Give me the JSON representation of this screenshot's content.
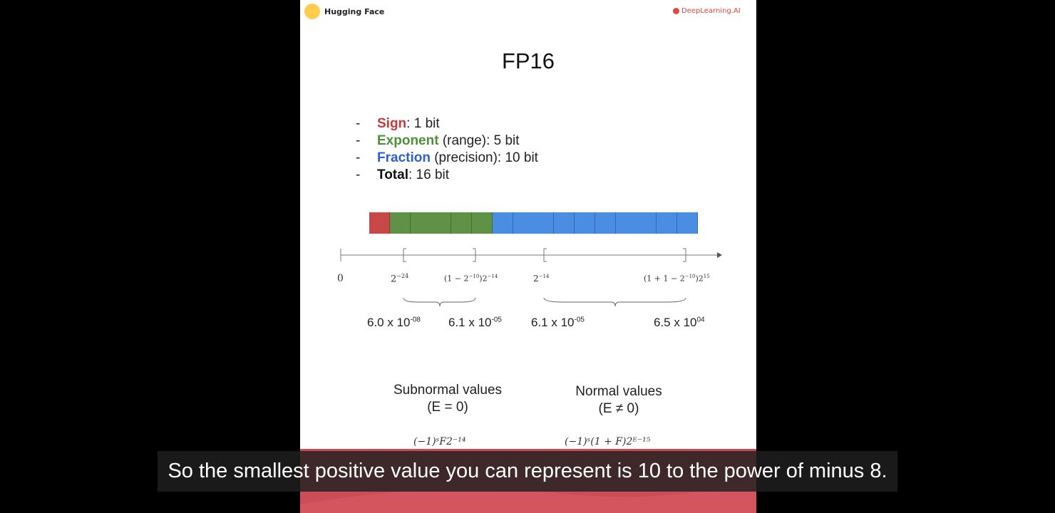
{
  "slide": {
    "hf_label": "Hugging Face",
    "dl_label": "DeepLearning.AI",
    "title": "FP16",
    "bullets": [
      {
        "dash": "-",
        "term": "Sign",
        "rest": ": 1 bit",
        "color": "#c8383d"
      },
      {
        "dash": "-",
        "term": "Exponent",
        "rest": " (range): 5 bit",
        "color": "#4f8f3a"
      },
      {
        "dash": "-",
        "term": "Fraction",
        "rest": " (precision): 10 bit",
        "color": "#2f5fd0"
      },
      {
        "dash": "-",
        "term": "Total",
        "rest": ": 16 bit",
        "color": "#111111"
      }
    ],
    "bit_layout": {
      "sign_bits": 1,
      "exponent_bits": 5,
      "fraction_bits": 10
    },
    "bit_colors": {
      "sign": "#c84848",
      "exponent": "#5f9246",
      "fraction": "#4a8ee4"
    },
    "axis_labels": {
      "zero": "0",
      "min_sub_base": "2",
      "min_sub_exp": "−24",
      "max_sub_base": "(1 − 2",
      "max_sub_exp1": "−10",
      "max_sub_mid": ")2",
      "max_sub_exp2": "−14",
      "min_norm_base": "2",
      "min_norm_exp": "−14",
      "max_norm_base": "(1 + 1 − 2",
      "max_norm_exp1": "−10",
      "max_norm_mid": ")2",
      "max_norm_exp2": "15"
    },
    "values": {
      "v1_base": "6.0 x 10",
      "v1_exp": "-08",
      "v2_base": "6.1 x 10",
      "v2_exp": "-05",
      "v3_base": "6.1 x 10",
      "v3_exp": "-05",
      "v4_base": "6.5 x 10",
      "v4_exp": "04"
    },
    "categories": {
      "subnormal_title": "Subnormal values",
      "subnormal_cond": "(E = 0)",
      "normal_title": "Normal values",
      "normal_cond": "(E ≠ 0)"
    },
    "formulas": {
      "subnormal": "(−1)ˢF2⁻¹⁴",
      "normal": "(−1)ˢ(1 + F)2ᴱ⁻¹⁵"
    }
  },
  "subtitle": "So the smallest positive value you can represent is 10 to the power of minus 8."
}
